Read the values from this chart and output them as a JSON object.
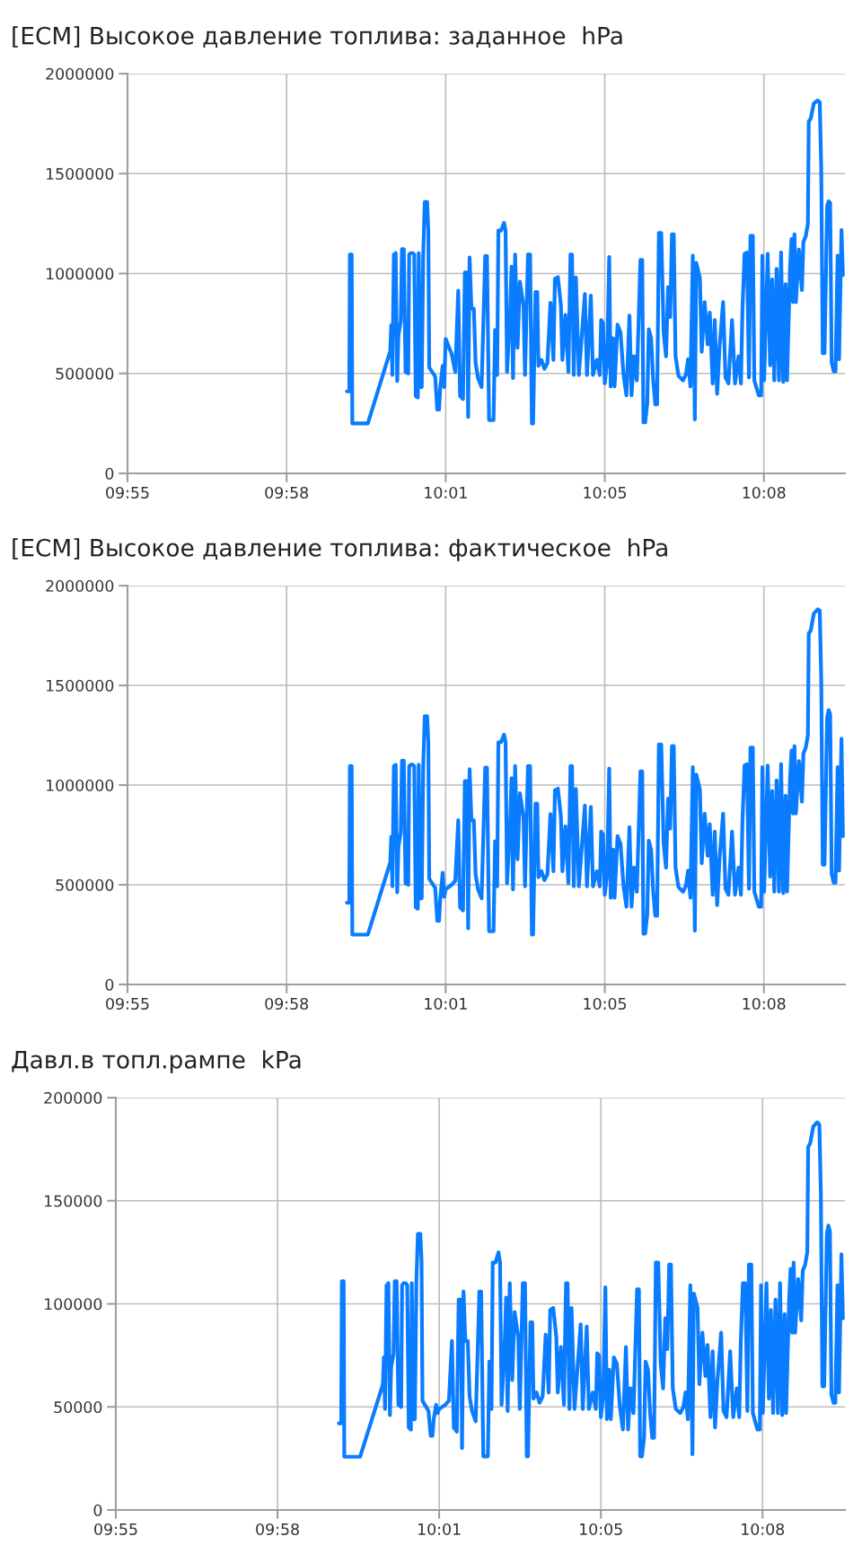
{
  "chart_data": [
    {
      "type": "line",
      "title": "[ECM] Высокое давление топлива: заданное  hPa",
      "grid": true,
      "line_style": "solid",
      "xlim": [
        9.9125,
        10.15677
      ],
      "xticks": [
        {
          "value": 9.9125,
          "label": "09:55"
        },
        {
          "value": 9.96667,
          "label": "09:58"
        },
        {
          "value": 10.02083,
          "label": "10:01"
        },
        {
          "value": 10.075,
          "label": "10:05"
        },
        {
          "value": 10.12917,
          "label": "10:08"
        }
      ],
      "ylim": [
        0,
        2000000
      ],
      "yticks": [
        0,
        500000,
        1000000,
        1500000,
        2000000
      ],
      "series": [
        {
          "color": "#0a7cff",
          "x": [
            9.9872,
            9.98801,
            9.98822,
            9.98883,
            9.98904,
            9.99433,
            10.00198,
            10.00229,
            10.00269,
            10.0032,
            10.00381,
            10.00433,
            10.00473,
            10.00554,
            10.00595,
            10.00657,
            10.00717,
            10.00809,
            10.0084,
            10.00891,
            10.00962,
            10.01013,
            10.01064,
            10.01136,
            10.01166,
            10.01217,
            10.01268,
            10.01319,
            10.0137,
            10.01451,
            10.01492,
            10.01523,
            10.01726,
            10.01798,
            10.01859,
            10.019,
            10.01981,
            10.02033,
            10.02083,
            10.02287,
            10.02409,
            10.02511,
            10.02573,
            10.02674,
            10.02736,
            10.02817,
            10.02848,
            10.02898,
            10.0296,
            10.03042,
            10.03102,
            10.03184,
            10.03306,
            10.03429,
            10.03489,
            10.03561,
            10.03713,
            10.03765,
            10.03836,
            10.03877,
            10.03969,
            10.0407,
            10.04122,
            10.04173,
            10.04274,
            10.04326,
            10.04376,
            10.04448,
            10.0453,
            10.0461,
            10.04733,
            10.04784,
            10.04885,
            10.04958,
            10.05018,
            10.05059,
            10.05141,
            10.05202,
            10.05242,
            10.05345,
            10.05446,
            10.05548,
            10.0565,
            10.05752,
            10.05803,
            10.05905,
            10.06007,
            10.06058,
            10.0616,
            10.06262,
            10.06333,
            10.06384,
            10.06445,
            10.06517,
            10.06618,
            10.06823,
            10.06894,
            10.07026,
            10.07098,
            10.0723,
            10.07332,
            10.07377,
            10.07439,
            10.075,
            10.0758,
            10.07651,
            10.07702,
            10.07783,
            10.07834,
            10.07935,
            10.08036,
            10.08137,
            10.08238,
            10.0834,
            10.08411,
            10.08492,
            10.08592,
            10.08714,
            10.08775,
            10.08816,
            10.08876,
            10.08947,
            10.08998,
            10.09079,
            10.0915,
            10.0922,
            10.09282,
            10.09342,
            10.09423,
            10.09504,
            10.09585,
            10.09656,
            10.09727,
            10.09788,
            10.09848,
            10.09909,
            10.1001,
            10.10162,
            10.10263,
            10.10335,
            10.10416,
            10.10497,
            10.10567,
            10.10617,
            10.10739,
            10.108,
            10.10901,
            10.11003,
            10.11074,
            10.11174,
            10.11245,
            10.11326,
            10.11407,
            10.11529,
            10.1161,
            10.11711,
            10.11832,
            10.11934,
            10.12056,
            10.12136,
            10.12187,
            10.12258,
            10.12339,
            10.12409,
            10.1246,
            10.12541,
            10.12592,
            10.12744,
            10.12825,
            10.12866,
            10.12926,
            10.13048,
            10.13129,
            10.13199,
            10.1327,
            10.13351,
            10.13432,
            10.13503,
            10.13575,
            10.13656,
            10.13706,
            10.13807,
            10.13857,
            10.13908,
            10.13959,
            10.14009,
            10.14111,
            10.14212,
            10.14263,
            10.14344,
            10.14415,
            10.14445,
            10.14515,
            10.14617,
            10.14748,
            10.1482,
            10.1487,
            10.14921,
            10.14982,
            10.15072,
            10.15123,
            10.15174,
            10.15224,
            10.15295,
            10.15356,
            10.15427,
            10.15478,
            10.15559,
            10.15609
          ],
          "values": [
            410000,
            410000,
            1095000,
            1095000,
            250000,
            250000,
            613000,
            741000,
            492000,
            1095000,
            1102000,
            462000,
            688000,
            763000,
            1122000,
            1122000,
            507000,
            500000,
            1095000,
            1102000,
            1102000,
            1095000,
            387000,
            380000,
            1102000,
            432000,
            432000,
            1095000,
            1358000,
            1358000,
            1215000,
            530000,
            485000,
            319000,
            319000,
            432000,
            538000,
            432000,
            673000,
            598000,
            507000,
            914000,
            387000,
            372000,
            1005000,
            1005000,
            282000,
            1080000,
            824000,
            824000,
            553000,
            477000,
            432000,
            1087000,
            1087000,
            267000,
            267000,
            718000,
            492000,
            1215000,
            1215000,
            1253000,
            1215000,
            507000,
            793000,
            1035000,
            477000,
            1095000,
            628000,
            959000,
            839000,
            492000,
            1095000,
            1095000,
            250000,
            250000,
            907000,
            907000,
            538000,
            568000,
            523000,
            553000,
            854000,
            568000,
            974000,
            982000,
            839000,
            568000,
            793000,
            507000,
            1095000,
            1095000,
            492000,
            980000,
            492000,
            897000,
            492000,
            890000,
            492000,
            568000,
            492000,
            767000,
            752000,
            450000,
            556000,
            1083000,
            435000,
            676000,
            435000,
            744000,
            706000,
            495000,
            390000,
            789000,
            390000,
            586000,
            465000,
            1068000,
            1068000,
            255000,
            255000,
            352000,
            721000,
            676000,
            465000,
            345000,
            345000,
            1203000,
            1203000,
            706000,
            586000,
            932000,
            782000,
            1196000,
            1196000,
            586000,
            488000,
            465000,
            495000,
            571000,
            435000,
            1090000,
            270000,
            1053000,
            977000,
            608000,
            857000,
            646000,
            804000,
            450000,
            767000,
            398000,
            631000,
            857000,
            480000,
            450000,
            767000,
            450000,
            586000,
            450000,
            812000,
            1098000,
            1105000,
            480000,
            1188000,
            1188000,
            465000,
            390000,
            390000,
            1090000,
            465000,
            1098000,
            541000,
            970000,
            465000,
            1023000,
            465000,
            1105000,
            458000,
            947000,
            465000,
            1023000,
            1173000,
            857000,
            1196000,
            857000,
            1120000,
            917000,
            1158000,
            1188000,
            1248000,
            1761000,
            1776000,
            1851000,
            1866000,
            1858000,
            1527000,
            601000,
            601000,
            1339000,
            1361000,
            1354000,
            556000,
            510000,
            510000,
            1090000,
            571000,
            1218000,
            992000
          ]
        }
      ]
    },
    {
      "type": "line",
      "title": "[ECM] Высокое давление топлива: фактическое  hPa",
      "grid": true,
      "line_style": "solid",
      "xlim": [
        9.9125,
        10.15677
      ],
      "xticks": [
        {
          "value": 9.9125,
          "label": "09:55"
        },
        {
          "value": 9.96667,
          "label": "09:58"
        },
        {
          "value": 10.02083,
          "label": "10:01"
        },
        {
          "value": 10.075,
          "label": "10:05"
        },
        {
          "value": 10.12917,
          "label": "10:08"
        }
      ],
      "ylim": [
        0,
        2000000
      ],
      "yticks": [
        0,
        500000,
        1000000,
        1500000,
        2000000
      ],
      "series": [
        {
          "color": "#0a7cff",
          "x": [
            9.9872,
            9.98801,
            9.98822,
            9.98883,
            9.98904,
            9.99433,
            10.00198,
            10.00229,
            10.00269,
            10.0032,
            10.00381,
            10.00433,
            10.00473,
            10.00554,
            10.00595,
            10.00657,
            10.00717,
            10.00809,
            10.0084,
            10.00891,
            10.00962,
            10.01013,
            10.01064,
            10.01136,
            10.01166,
            10.01217,
            10.01268,
            10.01319,
            10.0137,
            10.01451,
            10.01492,
            10.01523,
            10.01726,
            10.01798,
            10.01859,
            10.019,
            10.01981,
            10.02033,
            10.02083,
            10.02287,
            10.02409,
            10.02511,
            10.02573,
            10.02674,
            10.02736,
            10.02817,
            10.02848,
            10.02898,
            10.0296,
            10.03042,
            10.03102,
            10.03184,
            10.03306,
            10.03429,
            10.03489,
            10.03561,
            10.03713,
            10.03765,
            10.03836,
            10.03877,
            10.03969,
            10.0407,
            10.04122,
            10.04173,
            10.04274,
            10.04326,
            10.04376,
            10.04448,
            10.0453,
            10.0461,
            10.04733,
            10.04784,
            10.04885,
            10.04958,
            10.05018,
            10.05059,
            10.05141,
            10.05202,
            10.05242,
            10.05345,
            10.05446,
            10.05548,
            10.0565,
            10.05752,
            10.05803,
            10.05905,
            10.06007,
            10.06058,
            10.0616,
            10.06262,
            10.06333,
            10.06384,
            10.06445,
            10.06517,
            10.06618,
            10.06823,
            10.06894,
            10.07026,
            10.07098,
            10.0723,
            10.07332,
            10.07377,
            10.07439,
            10.075,
            10.0758,
            10.07651,
            10.07702,
            10.07783,
            10.07834,
            10.07935,
            10.08036,
            10.08137,
            10.08238,
            10.0834,
            10.08411,
            10.08492,
            10.08592,
            10.08714,
            10.08775,
            10.08816,
            10.08876,
            10.08947,
            10.08998,
            10.09079,
            10.0915,
            10.0922,
            10.09282,
            10.09342,
            10.09423,
            10.09504,
            10.09585,
            10.09656,
            10.09727,
            10.09788,
            10.09848,
            10.09909,
            10.1001,
            10.10162,
            10.10263,
            10.10335,
            10.10416,
            10.10497,
            10.10567,
            10.10617,
            10.10739,
            10.108,
            10.10901,
            10.11003,
            10.11074,
            10.11174,
            10.11245,
            10.11326,
            10.11407,
            10.11529,
            10.1161,
            10.11711,
            10.11832,
            10.11934,
            10.12056,
            10.12136,
            10.12187,
            10.12258,
            10.12339,
            10.12409,
            10.1246,
            10.12541,
            10.12592,
            10.12744,
            10.12825,
            10.12866,
            10.12926,
            10.13048,
            10.13129,
            10.13199,
            10.1327,
            10.13351,
            10.13432,
            10.13503,
            10.13575,
            10.13656,
            10.13706,
            10.13807,
            10.13857,
            10.13908,
            10.13959,
            10.14009,
            10.14111,
            10.14212,
            10.14263,
            10.14344,
            10.14415,
            10.14445,
            10.14515,
            10.14617,
            10.14748,
            10.1482,
            10.1487,
            10.14921,
            10.14982,
            10.15072,
            10.15123,
            10.15174,
            10.15224,
            10.15295,
            10.15356,
            10.15427,
            10.15478,
            10.15559,
            10.15609
          ],
          "values": [
            410000,
            410000,
            1095000,
            1095000,
            250000,
            250000,
            613000,
            741000,
            492000,
            1095000,
            1102000,
            462000,
            688000,
            763000,
            1122000,
            1122000,
            507000,
            500000,
            1095000,
            1102000,
            1102000,
            1095000,
            387000,
            380000,
            1102000,
            432000,
            432000,
            1095000,
            1345000,
            1345000,
            1215000,
            530000,
            485000,
            319000,
            319000,
            432000,
            560000,
            440000,
            477000,
            500000,
            520000,
            824000,
            387000,
            372000,
            1020000,
            1020000,
            282000,
            1080000,
            824000,
            824000,
            553000,
            477000,
            432000,
            1087000,
            1087000,
            267000,
            267000,
            718000,
            492000,
            1215000,
            1215000,
            1253000,
            1215000,
            507000,
            793000,
            1035000,
            477000,
            1095000,
            628000,
            959000,
            839000,
            492000,
            1095000,
            1095000,
            250000,
            250000,
            907000,
            907000,
            538000,
            568000,
            523000,
            553000,
            854000,
            568000,
            974000,
            982000,
            839000,
            568000,
            793000,
            507000,
            1095000,
            1095000,
            492000,
            980000,
            492000,
            897000,
            492000,
            890000,
            492000,
            568000,
            492000,
            767000,
            752000,
            450000,
            556000,
            1083000,
            435000,
            676000,
            435000,
            744000,
            706000,
            495000,
            390000,
            789000,
            390000,
            586000,
            465000,
            1068000,
            1068000,
            255000,
            255000,
            352000,
            721000,
            676000,
            465000,
            345000,
            345000,
            1203000,
            1203000,
            706000,
            586000,
            932000,
            782000,
            1196000,
            1196000,
            586000,
            488000,
            465000,
            495000,
            571000,
            435000,
            1090000,
            270000,
            1053000,
            977000,
            608000,
            857000,
            646000,
            804000,
            450000,
            767000,
            398000,
            631000,
            857000,
            480000,
            450000,
            767000,
            450000,
            586000,
            450000,
            812000,
            1098000,
            1105000,
            480000,
            1188000,
            1188000,
            465000,
            390000,
            390000,
            1090000,
            465000,
            1098000,
            541000,
            970000,
            465000,
            1023000,
            465000,
            1105000,
            458000,
            947000,
            465000,
            1023000,
            1173000,
            857000,
            1196000,
            857000,
            1120000,
            917000,
            1158000,
            1188000,
            1248000,
            1761000,
            1776000,
            1860000,
            1881000,
            1875000,
            1535000,
            601000,
            601000,
            1339000,
            1376000,
            1354000,
            556000,
            510000,
            510000,
            1090000,
            571000,
            1233000,
            744000
          ]
        }
      ]
    },
    {
      "type": "line",
      "title": "Давл.в топл.рампе  kPa",
      "grid": true,
      "line_style": "solid",
      "xlim": [
        9.9125,
        10.15677
      ],
      "xticks": [
        {
          "value": 9.9125,
          "label": "09:55"
        },
        {
          "value": 9.96667,
          "label": "09:58"
        },
        {
          "value": 10.02083,
          "label": "10:01"
        },
        {
          "value": 10.075,
          "label": "10:05"
        },
        {
          "value": 10.12917,
          "label": "10:08"
        }
      ],
      "ylim": [
        0,
        200000
      ],
      "yticks": [
        0,
        50000,
        100000,
        150000,
        200000
      ],
      "series": [
        {
          "color": "#0a7cff",
          "x": [
            9.9872,
            9.98801,
            9.98822,
            9.98883,
            9.98904,
            9.99433,
            10.00198,
            10.00229,
            10.00269,
            10.0032,
            10.00381,
            10.00433,
            10.00473,
            10.00554,
            10.00595,
            10.00657,
            10.00717,
            10.00809,
            10.0084,
            10.00891,
            10.00962,
            10.01013,
            10.01064,
            10.01136,
            10.01166,
            10.01217,
            10.01268,
            10.01319,
            10.0137,
            10.01451,
            10.01492,
            10.01523,
            10.01726,
            10.01798,
            10.01859,
            10.019,
            10.01981,
            10.02033,
            10.02083,
            10.02287,
            10.02409,
            10.02511,
            10.02573,
            10.02674,
            10.02736,
            10.02817,
            10.02848,
            10.02898,
            10.0296,
            10.03042,
            10.03102,
            10.03184,
            10.03306,
            10.03429,
            10.03489,
            10.03561,
            10.03713,
            10.03765,
            10.03836,
            10.03877,
            10.03969,
            10.0407,
            10.04122,
            10.04173,
            10.04274,
            10.04326,
            10.04376,
            10.04448,
            10.0453,
            10.0461,
            10.04733,
            10.04784,
            10.04885,
            10.04958,
            10.05018,
            10.05059,
            10.05141,
            10.05202,
            10.05242,
            10.05345,
            10.05446,
            10.05548,
            10.0565,
            10.05752,
            10.05803,
            10.05905,
            10.06007,
            10.06058,
            10.0616,
            10.06262,
            10.06333,
            10.06384,
            10.06445,
            10.06517,
            10.06618,
            10.06823,
            10.06894,
            10.07026,
            10.07098,
            10.0723,
            10.07332,
            10.07377,
            10.07439,
            10.075,
            10.0758,
            10.07651,
            10.07702,
            10.07783,
            10.07834,
            10.07935,
            10.08036,
            10.08137,
            10.08238,
            10.0834,
            10.08411,
            10.08492,
            10.08592,
            10.08714,
            10.08775,
            10.08816,
            10.08876,
            10.08947,
            10.08998,
            10.09079,
            10.0915,
            10.0922,
            10.09282,
            10.09342,
            10.09423,
            10.09504,
            10.09585,
            10.09656,
            10.09727,
            10.09788,
            10.09848,
            10.09909,
            10.1001,
            10.10162,
            10.10263,
            10.10335,
            10.10416,
            10.10497,
            10.10567,
            10.10617,
            10.10739,
            10.108,
            10.10901,
            10.11003,
            10.11074,
            10.11174,
            10.11245,
            10.11326,
            10.11407,
            10.11529,
            10.1161,
            10.11711,
            10.11832,
            10.11934,
            10.12056,
            10.12136,
            10.12187,
            10.12258,
            10.12339,
            10.12409,
            10.1246,
            10.12541,
            10.12592,
            10.12744,
            10.12825,
            10.12866,
            10.12926,
            10.13048,
            10.13129,
            10.13199,
            10.1327,
            10.13351,
            10.13432,
            10.13503,
            10.13575,
            10.13656,
            10.13706,
            10.13807,
            10.13857,
            10.13908,
            10.13959,
            10.14009,
            10.14111,
            10.14212,
            10.14263,
            10.14344,
            10.14415,
            10.14445,
            10.14515,
            10.14617,
            10.14748,
            10.1482,
            10.1487,
            10.14921,
            10.14982,
            10.15072,
            10.15123,
            10.15174,
            10.15224,
            10.15295,
            10.15356,
            10.15427,
            10.15478,
            10.15559,
            10.15609
          ],
          "values": [
            42000,
            42000,
            111000,
            111000,
            25800,
            25800,
            61000,
            74000,
            49000,
            109000,
            110000,
            46000,
            69000,
            76000,
            111000,
            111000,
            51000,
            50000,
            109000,
            110000,
            110000,
            109000,
            40000,
            39000,
            110000,
            44000,
            44000,
            110000,
            134000,
            134000,
            121000,
            53000,
            48000,
            36000,
            36000,
            44000,
            51000,
            47000,
            49000,
            51000,
            53000,
            82000,
            40000,
            38000,
            102000,
            102000,
            30000,
            106000,
            82000,
            82000,
            55000,
            48000,
            43000,
            106000,
            106000,
            26000,
            26000,
            72000,
            49000,
            120000,
            120000,
            125000,
            120000,
            51000,
            79000,
            103000,
            48000,
            110000,
            63000,
            96000,
            84000,
            49000,
            110000,
            110000,
            26000,
            26000,
            91000,
            91000,
            54000,
            57000,
            52000,
            55000,
            85000,
            57000,
            97000,
            98000,
            84000,
            57000,
            79000,
            51000,
            110000,
            110000,
            49000,
            98000,
            49000,
            90000,
            49000,
            89000,
            49000,
            57000,
            49000,
            76000,
            75000,
            45000,
            56000,
            108000,
            44000,
            68000,
            44000,
            74000,
            71000,
            50000,
            39000,
            79000,
            39000,
            59000,
            47000,
            107000,
            107000,
            26000,
            26000,
            35000,
            72000,
            68000,
            47000,
            35000,
            35000,
            120000,
            120000,
            71000,
            59000,
            93000,
            78000,
            119000,
            119000,
            59000,
            49000,
            47000,
            50000,
            57000,
            44000,
            109000,
            27000,
            105000,
            98000,
            61000,
            86000,
            65000,
            80000,
            45000,
            77000,
            40000,
            63000,
            86000,
            48000,
            45000,
            77000,
            45000,
            59000,
            45000,
            81000,
            110000,
            110000,
            48000,
            119000,
            119000,
            47000,
            39000,
            39000,
            109000,
            47000,
            110000,
            54000,
            97000,
            47000,
            102000,
            47000,
            110000,
            46000,
            95000,
            47000,
            102000,
            117000,
            86000,
            120000,
            86000,
            112000,
            92000,
            116000,
            119000,
            125000,
            176000,
            178000,
            186000,
            188000,
            187000,
            154000,
            60000,
            60000,
            134000,
            138000,
            135000,
            56000,
            52000,
            52000,
            109000,
            57000,
            124000,
            93000
          ]
        }
      ]
    }
  ]
}
